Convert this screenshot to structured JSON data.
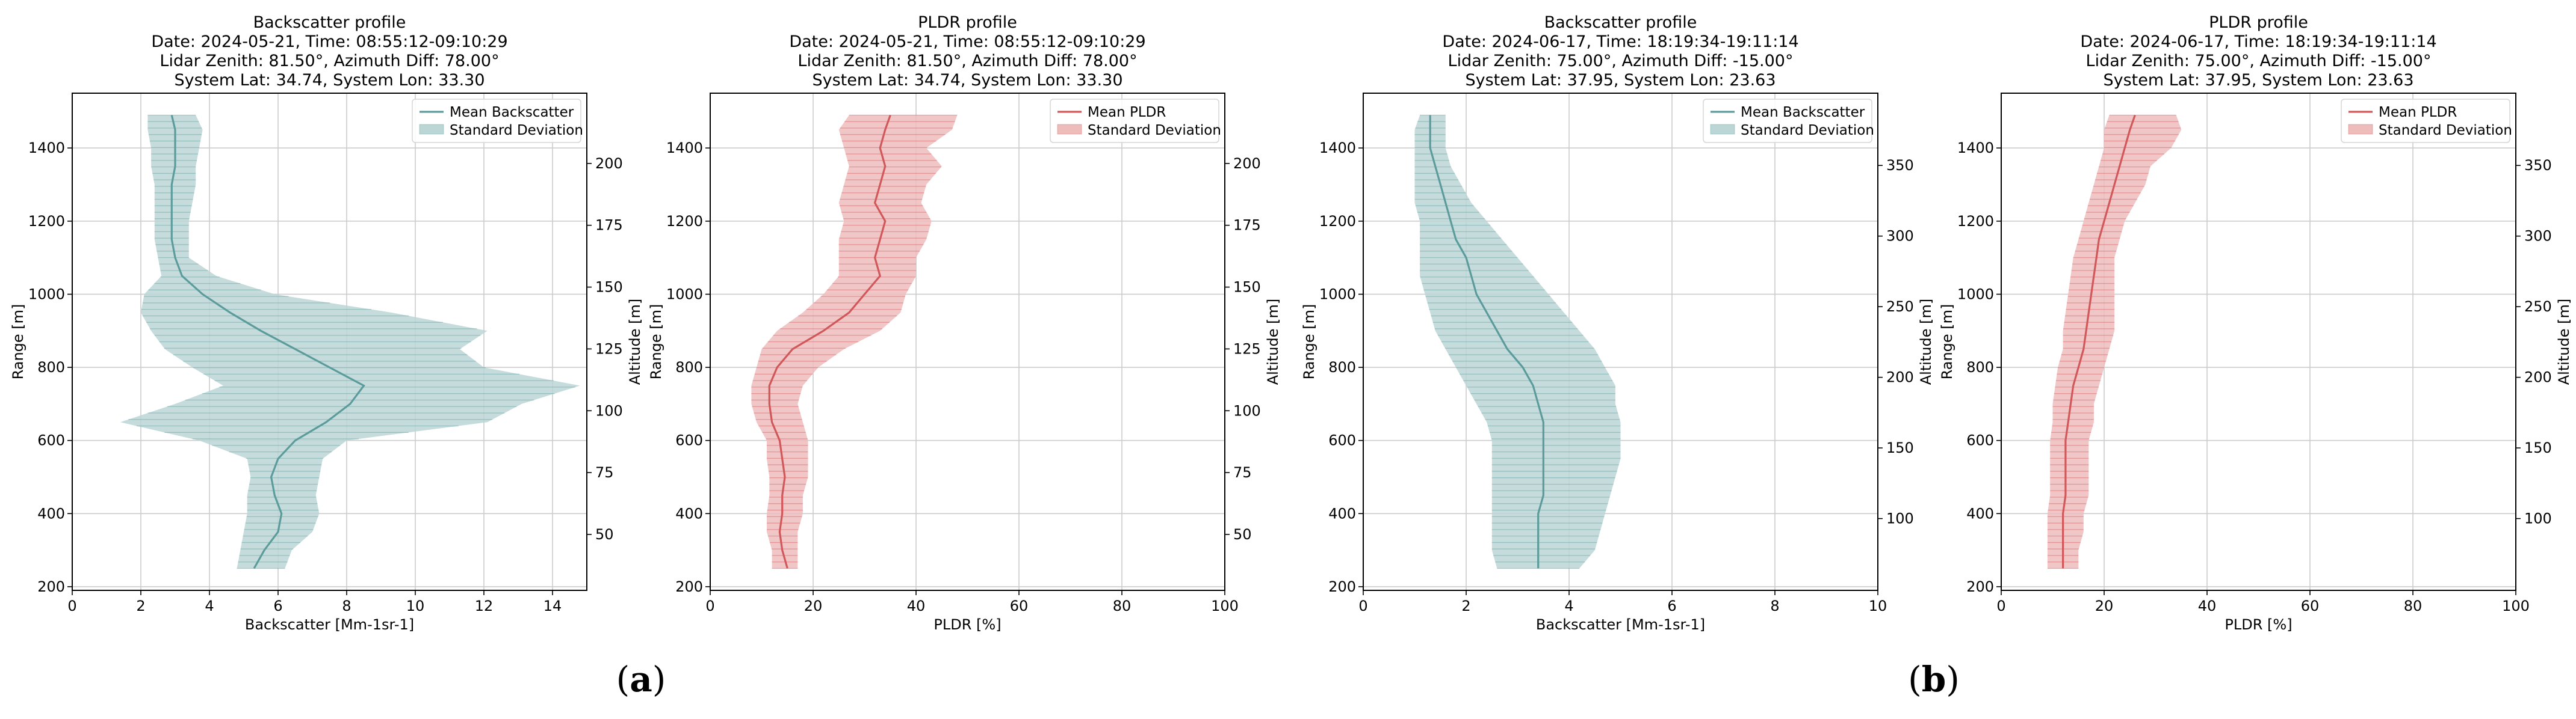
{
  "figure": {
    "panel_labels": [
      {
        "text": "(a)",
        "bold": "a"
      },
      {
        "text": "(b)",
        "bold": "b"
      }
    ]
  },
  "colors": {
    "backscatter_line": "#5b9b9b",
    "backscatter_fill": "#bcd6d6",
    "pldr_line": "#d0575a",
    "pldr_fill": "#efbcbc",
    "grid": "#cccccc"
  },
  "chart_data": [
    {
      "type": "line",
      "profile": "backscatter",
      "title_lines": [
        "Backscatter profile",
        "Date: 2024-05-21, Time: 08:55:12-09:10:29",
        "Lidar Zenith: 81.50°, Azimuth Diff: 78.00°",
        "System Lat: 34.74, System Lon: 33.30"
      ],
      "xlabel": "Backscatter [Mm-1sr-1]",
      "ylabel": "Range [m]",
      "y2label": "Altitude [m]",
      "xlim": [
        0,
        15
      ],
      "ylim": [
        190,
        1550
      ],
      "xticks": [
        0,
        2,
        4,
        6,
        8,
        10,
        12,
        14
      ],
      "yticks": [
        200,
        400,
        600,
        800,
        1000,
        1200,
        1400
      ],
      "y2ticks": [
        50,
        75,
        100,
        125,
        150,
        175,
        200
      ],
      "altitude_per_meter": 0.14781,
      "altitude_offset": -0.7,
      "legend": [
        "Mean Backscatter",
        "Standard Deviation"
      ],
      "series": [
        {
          "name": "Mean Backscatter",
          "range": [
            250,
            300,
            350,
            400,
            450,
            500,
            550,
            600,
            650,
            700,
            750,
            800,
            850,
            900,
            950,
            1000,
            1050,
            1100,
            1150,
            1200,
            1250,
            1300,
            1350,
            1400,
            1450,
            1490
          ],
          "mean": [
            5.3,
            5.6,
            6.0,
            6.1,
            5.9,
            5.8,
            6.0,
            6.5,
            7.4,
            8.1,
            8.5,
            7.5,
            6.5,
            5.5,
            4.6,
            3.8,
            3.2,
            3.0,
            2.9,
            2.9,
            2.9,
            2.9,
            3.0,
            3.0,
            3.0,
            2.9
          ],
          "std_low": [
            4.8,
            4.9,
            5.0,
            5.1,
            5.1,
            5.2,
            5.1,
            3.7,
            1.4,
            3.0,
            4.4,
            3.5,
            2.7,
            2.3,
            2.0,
            2.1,
            2.6,
            2.5,
            2.4,
            2.4,
            2.4,
            2.4,
            2.3,
            2.3,
            2.2,
            2.2
          ],
          "std_high": [
            6.2,
            6.4,
            7.0,
            7.2,
            7.1,
            7.2,
            7.3,
            8.0,
            12.1,
            13.1,
            14.8,
            12.0,
            11.3,
            12.1,
            9.3,
            5.9,
            4.2,
            3.4,
            3.4,
            3.4,
            3.5,
            3.6,
            3.6,
            3.7,
            3.8,
            3.6
          ]
        }
      ]
    },
    {
      "type": "line",
      "profile": "pldr",
      "title_lines": [
        "PLDR profile",
        "Date: 2024-05-21, Time: 08:55:12-09:10:29",
        "Lidar Zenith: 81.50°, Azimuth Diff: 78.00°",
        "System Lat: 34.74, System Lon: 33.30"
      ],
      "xlabel": "PLDR [%]",
      "ylabel": "Range [m]",
      "y2label": "Altitude [m]",
      "xlim": [
        0,
        100
      ],
      "ylim": [
        190,
        1550
      ],
      "xticks": [
        0,
        20,
        40,
        60,
        80,
        100
      ],
      "yticks": [
        200,
        400,
        600,
        800,
        1000,
        1200,
        1400
      ],
      "y2ticks": [
        50,
        75,
        100,
        125,
        150,
        175,
        200
      ],
      "altitude_per_meter": 0.14781,
      "altitude_offset": -0.7,
      "legend": [
        "Mean PLDR",
        "Standard Deviation"
      ],
      "series": [
        {
          "name": "Mean PLDR",
          "range": [
            250,
            300,
            350,
            400,
            450,
            500,
            550,
            600,
            650,
            700,
            750,
            800,
            850,
            900,
            950,
            1000,
            1050,
            1100,
            1150,
            1200,
            1250,
            1300,
            1350,
            1400,
            1450,
            1490
          ],
          "mean": [
            15,
            14,
            13.5,
            14,
            14,
            14.5,
            14,
            13.5,
            12,
            11.5,
            11.5,
            13,
            16,
            22,
            27,
            30,
            33,
            32,
            33,
            34,
            32,
            33,
            34,
            33,
            34,
            35
          ],
          "std_low": [
            12,
            12,
            11,
            11,
            11.5,
            11.5,
            11,
            11,
            9,
            8,
            8,
            9,
            10,
            13,
            18,
            22,
            25,
            25,
            25,
            26,
            25,
            26,
            27,
            26,
            25,
            27
          ],
          "std_high": [
            17,
            17,
            17,
            18,
            18,
            19,
            19,
            19,
            18,
            17,
            18,
            21,
            26,
            33,
            37,
            38,
            40,
            40,
            42,
            43,
            41,
            42,
            45,
            42,
            47,
            48
          ]
        }
      ]
    },
    {
      "type": "line",
      "profile": "backscatter",
      "title_lines": [
        "Backscatter profile",
        "Date: 2024-06-17, Time: 18:19:34-19:11:14",
        "Lidar Zenith: 75.00°, Azimuth Diff: -15.00°",
        "System Lat: 37.95, System Lon: 23.63"
      ],
      "xlabel": "Backscatter [Mm-1sr-1]",
      "ylabel": "Range [m]",
      "y2label": "Altitude [m]",
      "xlim": [
        0,
        10
      ],
      "ylim": [
        190,
        1550
      ],
      "xticks": [
        0,
        2,
        4,
        6,
        8,
        10
      ],
      "yticks": [
        200,
        400,
        600,
        800,
        1000,
        1200,
        1400
      ],
      "y2ticks": [
        100,
        150,
        200,
        250,
        300,
        350
      ],
      "altitude_per_meter": 0.25882,
      "altitude_offset": 0,
      "legend": [
        "Mean Backscatter",
        "Standard Deviation"
      ],
      "series": [
        {
          "name": "Mean Backscatter",
          "range": [
            250,
            300,
            350,
            400,
            450,
            500,
            550,
            600,
            650,
            700,
            750,
            800,
            850,
            900,
            950,
            1000,
            1050,
            1100,
            1150,
            1200,
            1250,
            1300,
            1350,
            1400,
            1450,
            1490
          ],
          "mean": [
            3.4,
            3.4,
            3.4,
            3.4,
            3.5,
            3.5,
            3.5,
            3.5,
            3.5,
            3.4,
            3.3,
            3.1,
            2.8,
            2.6,
            2.4,
            2.2,
            2.1,
            2.0,
            1.8,
            1.7,
            1.6,
            1.5,
            1.4,
            1.3,
            1.3,
            1.3
          ],
          "std_low": [
            2.6,
            2.5,
            2.5,
            2.5,
            2.5,
            2.5,
            2.5,
            2.5,
            2.4,
            2.2,
            2.0,
            1.8,
            1.6,
            1.4,
            1.3,
            1.2,
            1.1,
            1.1,
            1.1,
            1.1,
            1.0,
            1.0,
            1.0,
            1.0,
            1.0,
            1.1
          ],
          "std_high": [
            4.2,
            4.5,
            4.6,
            4.7,
            4.8,
            4.9,
            5.0,
            5.0,
            5.0,
            4.9,
            4.9,
            4.7,
            4.5,
            4.2,
            3.9,
            3.6,
            3.3,
            3.0,
            2.7,
            2.4,
            2.1,
            1.9,
            1.7,
            1.6,
            1.6,
            1.6
          ]
        }
      ]
    },
    {
      "type": "line",
      "profile": "pldr",
      "title_lines": [
        "PLDR profile",
        "Date: 2024-06-17, Time: 18:19:34-19:11:14",
        "Lidar Zenith: 75.00°, Azimuth Diff: -15.00°",
        "System Lat: 37.95, System Lon: 23.63"
      ],
      "xlabel": "PLDR [%]",
      "ylabel": "Range [m]",
      "y2label": "Altitude [m]",
      "xlim": [
        0,
        100
      ],
      "ylim": [
        190,
        1550
      ],
      "xticks": [
        0,
        20,
        40,
        60,
        80,
        100
      ],
      "yticks": [
        200,
        400,
        600,
        800,
        1000,
        1200,
        1400
      ],
      "y2ticks": [
        100,
        150,
        200,
        250,
        300,
        350
      ],
      "altitude_per_meter": 0.25882,
      "altitude_offset": 0,
      "legend": [
        "Mean PLDR",
        "Standard Deviation"
      ],
      "series": [
        {
          "name": "Mean PLDR",
          "range": [
            250,
            300,
            350,
            400,
            450,
            500,
            550,
            600,
            650,
            700,
            750,
            800,
            850,
            900,
            950,
            1000,
            1050,
            1100,
            1150,
            1200,
            1250,
            1300,
            1350,
            1400,
            1450,
            1490
          ],
          "mean": [
            12,
            12,
            12,
            12,
            12.5,
            12.5,
            12.5,
            12.5,
            13,
            13.5,
            14,
            15,
            16,
            16.5,
            17,
            17.5,
            18,
            18.5,
            19,
            20,
            21,
            22,
            23,
            24,
            25,
            26
          ],
          "std_low": [
            9,
            9,
            9,
            9,
            9.5,
            9.5,
            9.5,
            9.5,
            10,
            10,
            10.5,
            11,
            12,
            12,
            12.5,
            13,
            13.5,
            14,
            15,
            16,
            17,
            18,
            19,
            20,
            20,
            21
          ],
          "std_high": [
            15,
            15,
            16,
            16,
            17,
            17,
            17,
            17,
            18,
            18,
            19,
            20,
            21,
            22,
            22,
            22,
            22,
            22,
            23,
            24,
            26,
            28,
            29,
            33,
            35,
            34
          ]
        }
      ]
    }
  ]
}
